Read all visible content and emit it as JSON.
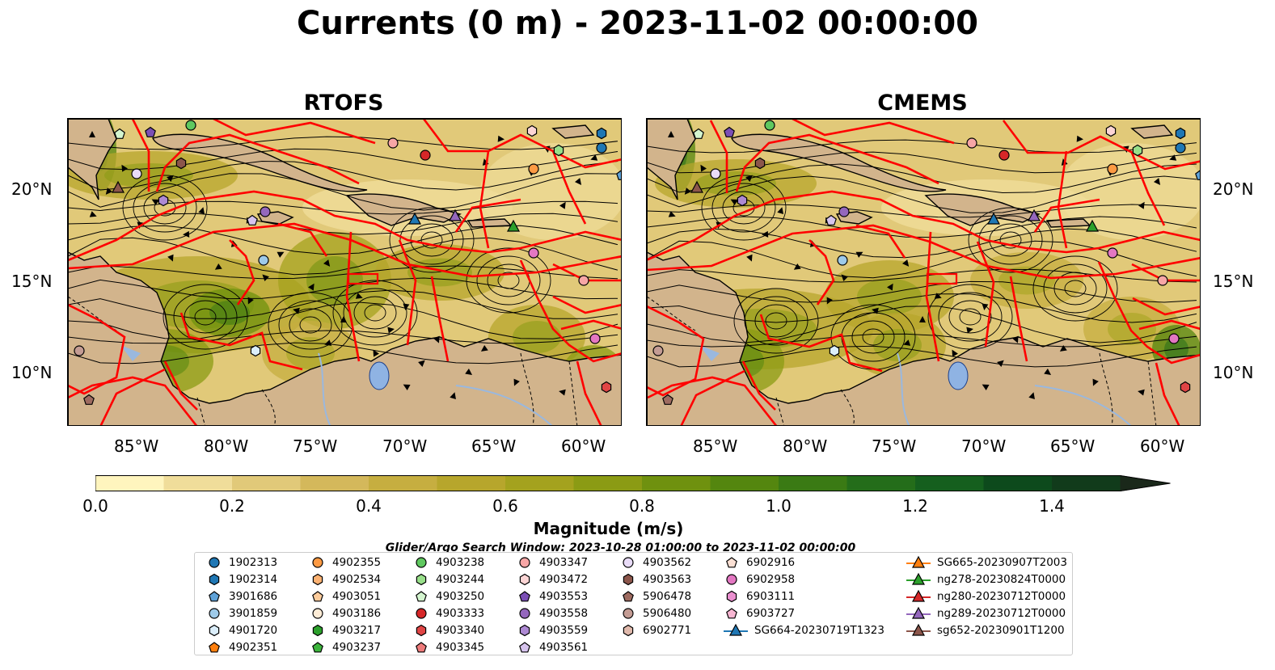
{
  "title": "Currents (0 m) - 2023-11-02 00:00:00",
  "panels": [
    {
      "id": "left",
      "title": "RTOFS"
    },
    {
      "id": "right",
      "title": "CMEMS"
    }
  ],
  "axes": {
    "lat_ticks": [
      "20°N",
      "15°N",
      "10°N"
    ],
    "lon_ticks": [
      "85°W",
      "80°W",
      "75°W",
      "70°W",
      "65°W",
      "60°W"
    ]
  },
  "colors": {
    "land": "#d2b48c",
    "boundaries": "#ff0000",
    "river": "#9ab8de",
    "lake": "#8fb3e3"
  },
  "colorbar": {
    "label": "Magnitude (m/s)",
    "ticks": [
      "0.0",
      "0.2",
      "0.4",
      "0.6",
      "0.8",
      "1.0",
      "1.2",
      "1.4"
    ],
    "range": [
      0,
      1.5
    ],
    "extend": "max",
    "colors": [
      "#fff5be",
      "#f0dd9a",
      "#e1c979",
      "#d4b85b",
      "#c6ae40",
      "#b7a62c",
      "#a4a21e",
      "#8b9b14",
      "#6f910f",
      "#54860f",
      "#3a7a14",
      "#246d1a",
      "#155f1e",
      "#0d4a1c",
      "#113b1b",
      "#1a281a"
    ]
  },
  "legend": {
    "title": "Glider/Argo Search Window: 2023-10-28 01:00:00 to 2023-11-02 00:00:00",
    "columns": [
      [
        {
          "label": "1902313",
          "marker": "circle",
          "color": "#1f77b4"
        },
        {
          "label": "1902314",
          "marker": "hexagon",
          "color": "#1f77b4"
        },
        {
          "label": "3901686",
          "marker": "pentagon",
          "color": "#5fa2d8"
        },
        {
          "label": "3901859",
          "marker": "circle",
          "color": "#9ecae9"
        },
        {
          "label": "4901720",
          "marker": "hexagon",
          "color": "#dbeefb"
        },
        {
          "label": "4902351",
          "marker": "pentagon",
          "color": "#ff7f0e"
        }
      ],
      [
        {
          "label": "4902355",
          "marker": "circle",
          "color": "#fd9a43"
        },
        {
          "label": "4902534",
          "marker": "hexagon",
          "color": "#fdb272"
        },
        {
          "label": "4903051",
          "marker": "pentagon",
          "color": "#fdcc9c"
        },
        {
          "label": "4903186",
          "marker": "circle",
          "color": "#feecd6"
        },
        {
          "label": "4903217",
          "marker": "hexagon",
          "color": "#2ca02c"
        },
        {
          "label": "4903237",
          "marker": "pentagon",
          "color": "#3cb43c"
        }
      ],
      [
        {
          "label": "4903238",
          "marker": "circle",
          "color": "#5fc85f"
        },
        {
          "label": "4903244",
          "marker": "hexagon",
          "color": "#98df8a"
        },
        {
          "label": "4903250",
          "marker": "pentagon",
          "color": "#d4f5cf"
        },
        {
          "label": "4903333",
          "marker": "circle",
          "color": "#d62728"
        },
        {
          "label": "4903340",
          "marker": "hexagon",
          "color": "#e04545"
        },
        {
          "label": "4903345",
          "marker": "pentagon",
          "color": "#ee7b7b"
        }
      ],
      [
        {
          "label": "4903347",
          "marker": "circle",
          "color": "#f7a6a6"
        },
        {
          "label": "4903472",
          "marker": "hexagon",
          "color": "#fcd5d5"
        },
        {
          "label": "4903553",
          "marker": "pentagon",
          "color": "#7b4fb5"
        },
        {
          "label": "4903558",
          "marker": "circle",
          "color": "#9467bd"
        },
        {
          "label": "4903559",
          "marker": "hexagon",
          "color": "#ad89d3"
        },
        {
          "label": "4903561",
          "marker": "pentagon",
          "color": "#d6c3ed"
        }
      ],
      [
        {
          "label": "4903562",
          "marker": "circle",
          "color": "#e9dcf8"
        },
        {
          "label": "4903563",
          "marker": "hexagon",
          "color": "#8c564b"
        },
        {
          "label": "5906478",
          "marker": "pentagon",
          "color": "#9e6b60"
        },
        {
          "label": "5906480",
          "marker": "circle",
          "color": "#c49c94"
        },
        {
          "label": "6902771",
          "marker": "hexagon",
          "color": "#e0b9ac"
        }
      ],
      [
        {
          "label": "6902916",
          "marker": "pentagon",
          "color": "#fbe0d4"
        },
        {
          "label": "6902958",
          "marker": "circle",
          "color": "#e377c2"
        },
        {
          "label": "6903111",
          "marker": "hexagon",
          "color": "#ea8fcf"
        },
        {
          "label": "6903727",
          "marker": "pentagon",
          "color": "#f7b6d2"
        },
        {
          "label": "SG664-20230719T1323",
          "marker": "glider",
          "color": "#1f77b4"
        }
      ],
      [
        {
          "label": "SG665-20230907T2003",
          "marker": "glider",
          "color": "#ff7f0e"
        },
        {
          "label": "ng278-20230824T0000",
          "marker": "glider",
          "color": "#2ca02c"
        },
        {
          "label": "ng280-20230712T0000",
          "marker": "glider",
          "color": "#d62728"
        },
        {
          "label": "ng289-20230712T0000",
          "marker": "glider",
          "color": "#9467bd"
        },
        {
          "label": "sg652-20230901T1200",
          "marker": "glider",
          "color": "#8c564b"
        }
      ]
    ]
  }
}
